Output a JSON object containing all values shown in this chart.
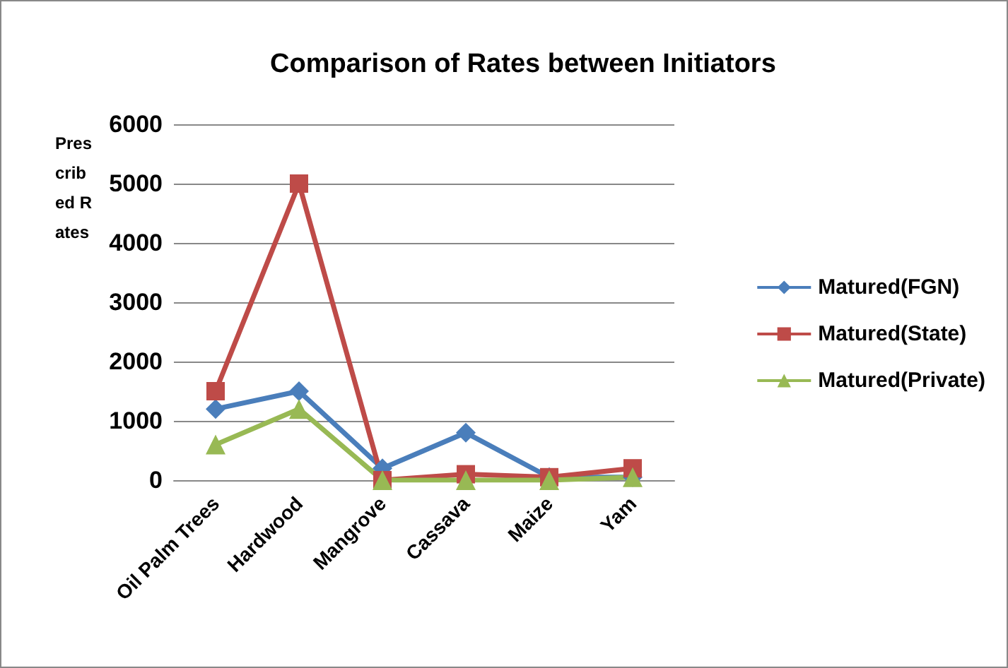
{
  "chart_data": {
    "type": "line",
    "title": "Comparison of Rates between Initiators",
    "ylabel": "Prescribed Rates",
    "categories": [
      "Oil Palm Trees",
      "Hardwood",
      "Mangrove",
      "Cassava",
      "Maize",
      "Yam"
    ],
    "series": [
      {
        "name": "Matured(FGN)",
        "color": "#4a7ebb",
        "marker": "diamond",
        "values": [
          1200,
          1500,
          200,
          800,
          50,
          50
        ]
      },
      {
        "name": "Matured(State)",
        "color": "#be4b48",
        "marker": "square",
        "values": [
          1500,
          5000,
          0,
          100,
          50,
          200
        ]
      },
      {
        "name": "Matured(Private)",
        "color": "#98b954",
        "marker": "triangle",
        "values": [
          600,
          1200,
          0,
          0,
          0,
          50
        ]
      }
    ],
    "ylim": [
      0,
      6000
    ],
    "yticks": [
      0,
      1000,
      2000,
      3000,
      4000,
      5000,
      6000
    ],
    "grid": "y",
    "legend": "right",
    "line_style": "solid"
  }
}
